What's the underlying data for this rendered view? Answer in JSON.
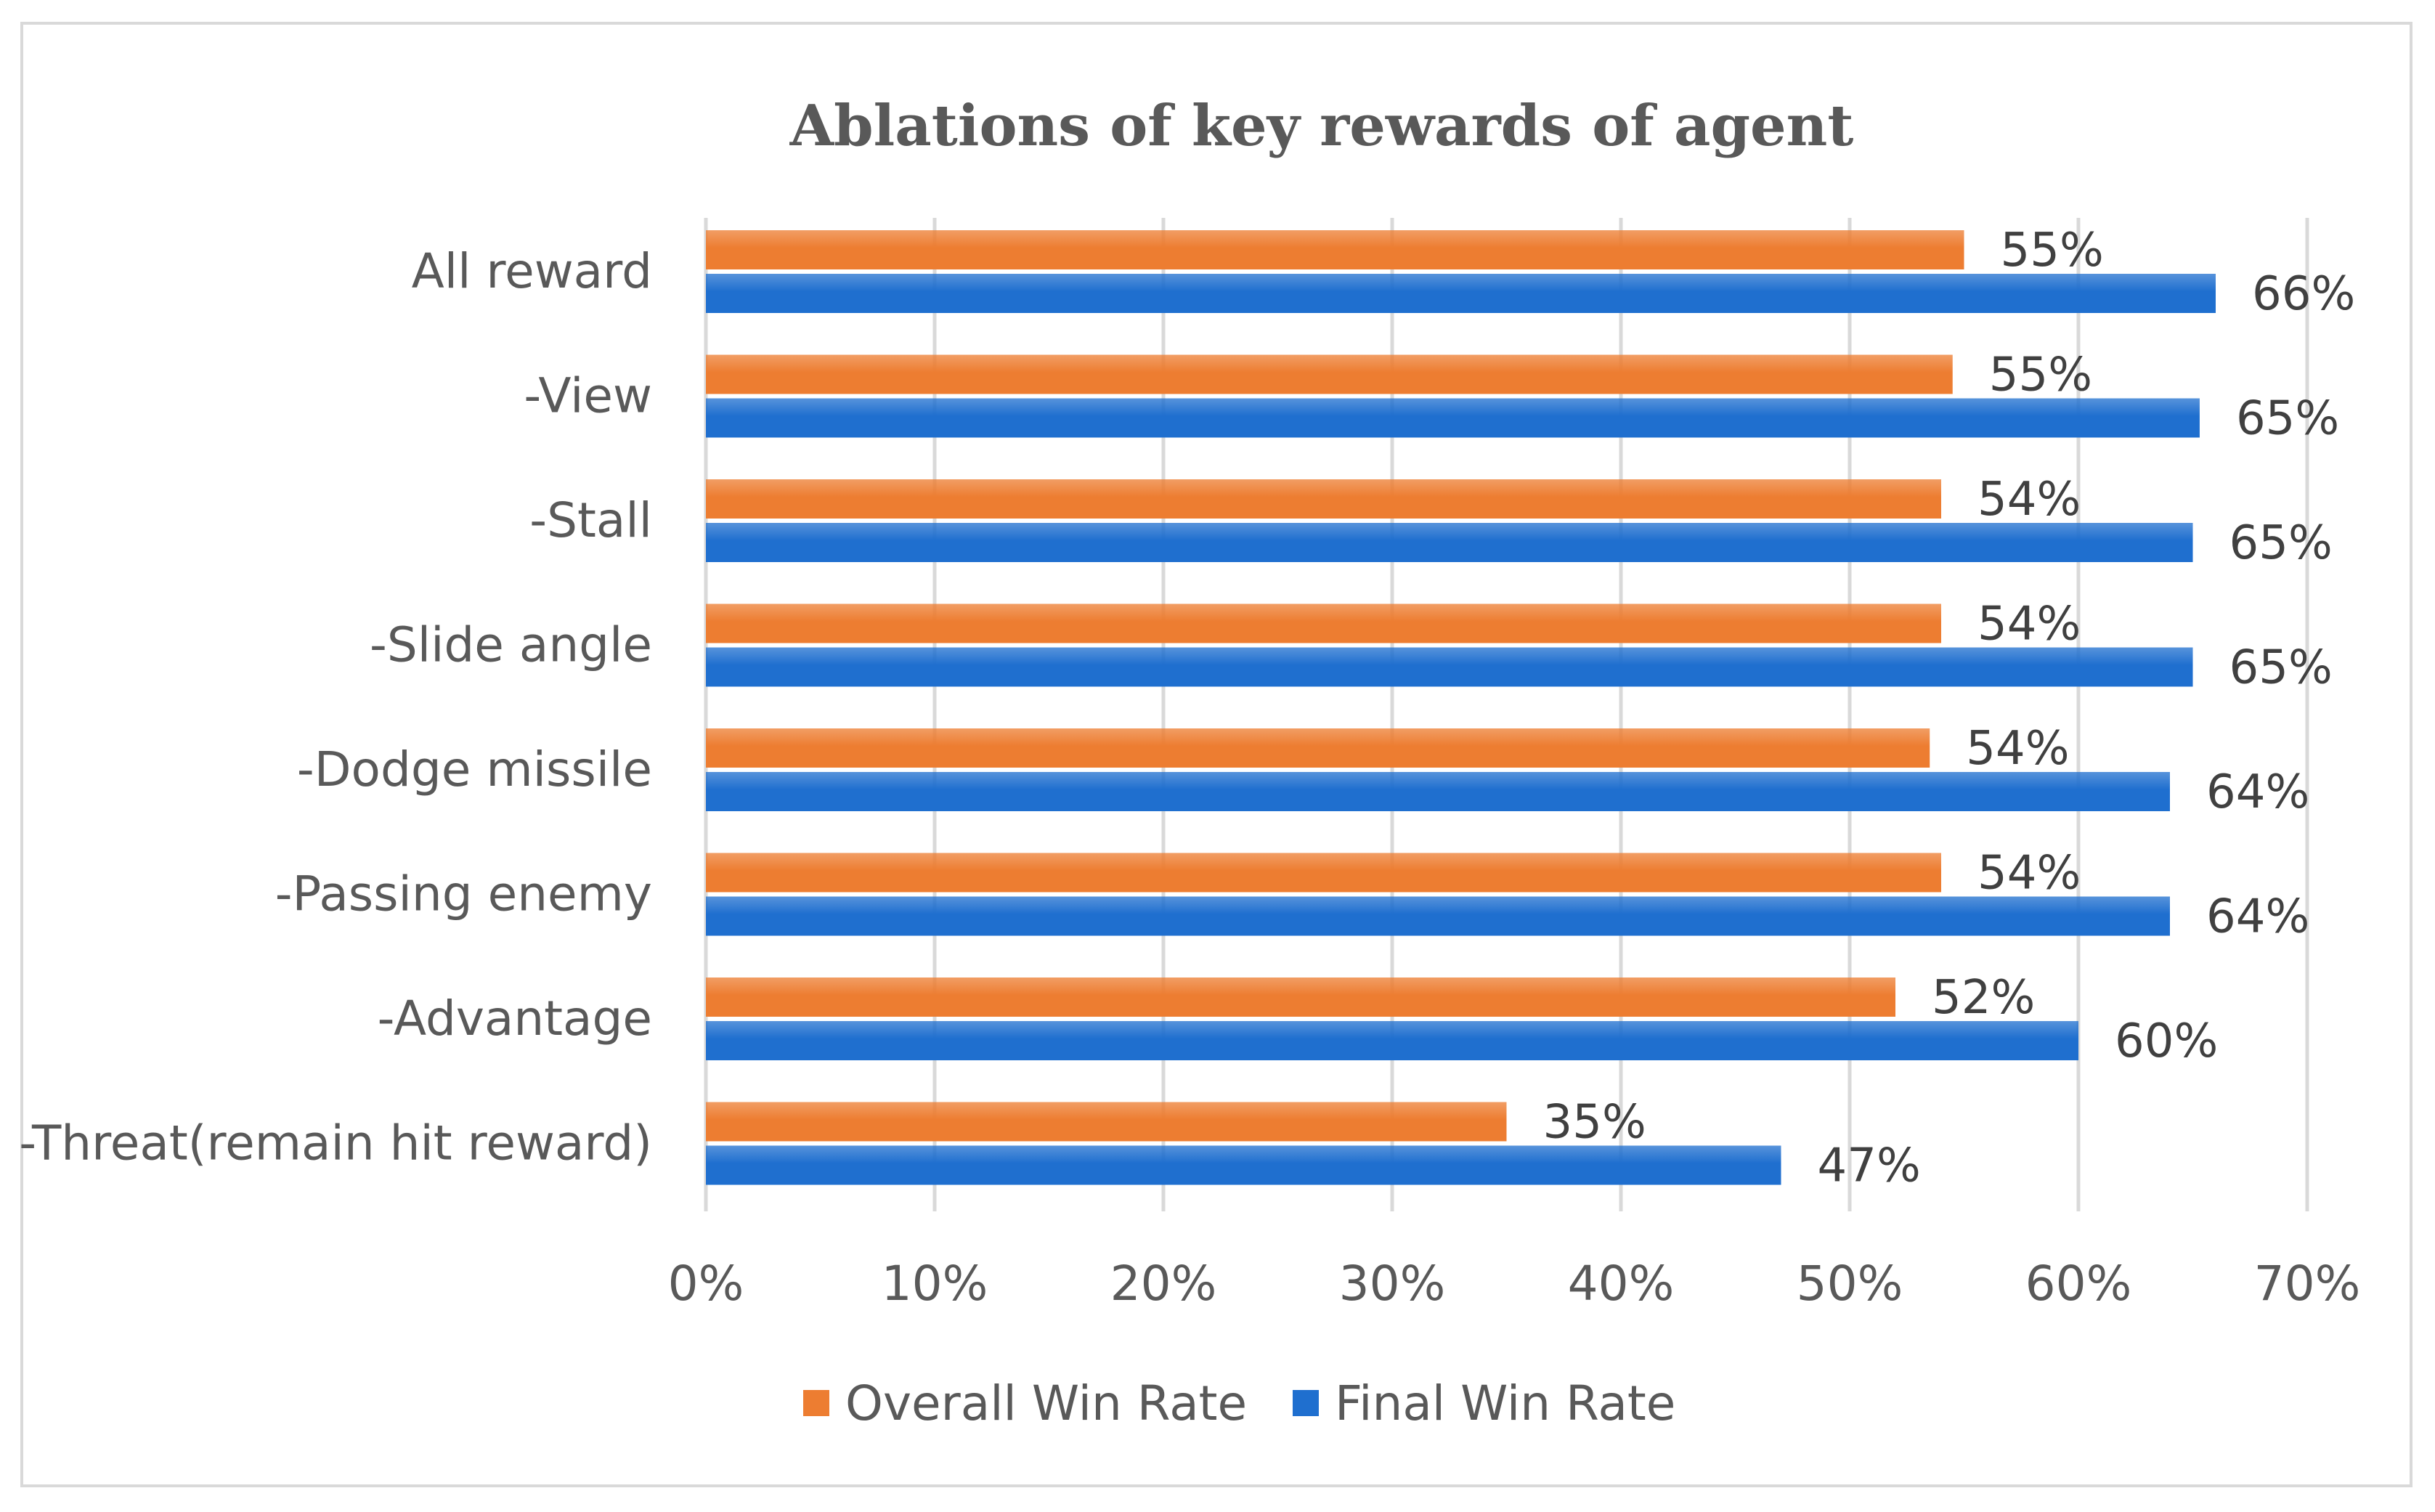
{
  "chart_data": {
    "type": "bar",
    "orientation": "horizontal",
    "title": "Ablations of key rewards of agent",
    "categories": [
      "All reward",
      "-View",
      "-Stall",
      "-Slide angle",
      "-Dodge missile",
      "-Passing enemy",
      "-Advantage",
      "-Threat(remain hit reward)"
    ],
    "series": [
      {
        "name": "Overall Win Rate",
        "color": "#ed7d31",
        "values": [
          55,
          54.5,
          54,
          54,
          53.5,
          54,
          52,
          35
        ],
        "labels": [
          "55%",
          "55%",
          "54%",
          "54%",
          "54%",
          "54%",
          "52%",
          "35%"
        ]
      },
      {
        "name": "Final Win Rate",
        "color": "#1f6fcf",
        "values": [
          66,
          65.3,
          65,
          65,
          64,
          64,
          60,
          47
        ],
        "labels": [
          "66%",
          "65%",
          "65%",
          "65%",
          "64%",
          "64%",
          "60%",
          "47%"
        ]
      }
    ],
    "x_ticks": [
      "0%",
      "10%",
      "20%",
      "30%",
      "40%",
      "50%",
      "60%",
      "70%"
    ],
    "xlim": [
      0,
      70
    ],
    "grid": true,
    "legend_position": "bottom"
  }
}
